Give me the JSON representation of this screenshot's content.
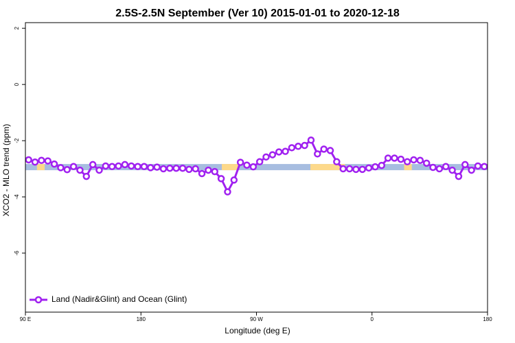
{
  "chart_data": {
    "type": "line",
    "title": "2.5S-2.5N September (Ver 10)   2015-01-01 to 2020-12-18",
    "x_label": "Longitude (deg E)",
    "y_label": "XCO2 - MLO trend (ppm)",
    "x": [
      92.5,
      97.5,
      102.5,
      107.5,
      112.5,
      117.5,
      122.5,
      127.5,
      132.5,
      137.5,
      142.5,
      147.5,
      152.5,
      157.5,
      162.5,
      167.5,
      172.5,
      177.5,
      182.5,
      187.5,
      192.5,
      197.5,
      202.5,
      207.5,
      212.5,
      217.5,
      222.5,
      227.5,
      232.5,
      237.5,
      242.5,
      247.5,
      252.5,
      257.5,
      262.5,
      267.5,
      272.5,
      277.5,
      282.5,
      287.5,
      292.5,
      297.5,
      302.5,
      307.5,
      312.5,
      317.5,
      322.5,
      327.5,
      332.5,
      337.5,
      342.5,
      347.5,
      352.5,
      357.5,
      362.5,
      367.5,
      372.5,
      377.5,
      382.5,
      387.5,
      392.5,
      397.5,
      402.5,
      407.5,
      412.5,
      417.5,
      422.5,
      427.5,
      432.5,
      437.5,
      442.5,
      447.5
    ],
    "series": [
      {
        "name": "Land (Nadir&Glint) and Ocean (Glint)",
        "color": "#a020f0",
        "values": [
          -2.68,
          -2.76,
          -2.7,
          -2.72,
          -2.83,
          -2.96,
          -3.03,
          -2.92,
          -3.05,
          -3.27,
          -2.85,
          -3.05,
          -2.9,
          -2.92,
          -2.9,
          -2.85,
          -2.9,
          -2.92,
          -2.92,
          -2.96,
          -2.94,
          -3.0,
          -2.98,
          -2.98,
          -2.98,
          -3.02,
          -3.0,
          -3.17,
          -3.05,
          -3.1,
          -3.35,
          -3.82,
          -3.4,
          -2.77,
          -2.87,
          -2.93,
          -2.75,
          -2.58,
          -2.5,
          -2.4,
          -2.38,
          -2.25,
          -2.2,
          -2.17,
          -1.98,
          -2.47,
          -2.3,
          -2.35,
          -2.75,
          -3.0,
          -3.0,
          -3.02,
          -3.02,
          -2.97,
          -2.93,
          -2.88,
          -2.62,
          -2.62,
          -2.66,
          -2.75,
          -2.68,
          -2.7,
          -2.8,
          -2.95,
          -3.0,
          -2.92,
          -3.05,
          -3.27,
          -2.85,
          -3.05,
          -2.9,
          -2.92
        ]
      }
    ],
    "band": {
      "range": [
        -3.05,
        -2.83
      ],
      "color": "#a7bde0",
      "land_color": "#fdd98a",
      "land": [
        [
          99,
          105
        ],
        [
          243,
          256
        ],
        [
          312,
          339
        ],
        [
          385,
          391
        ]
      ]
    },
    "xlim": [
      90,
      450
    ],
    "xticks": [
      {
        "value": 90,
        "label": "90 E"
      },
      180,
      {
        "value": 270,
        "label": "90 W"
      },
      {
        "value": 360,
        "label": "0"
      },
      {
        "value": 450,
        "label": "180"
      }
    ],
    "ylim": [
      -8.1,
      2.2
    ],
    "yticks": [
      2,
      0,
      -2,
      -4,
      -6
    ],
    "legend": "bottomleft"
  }
}
